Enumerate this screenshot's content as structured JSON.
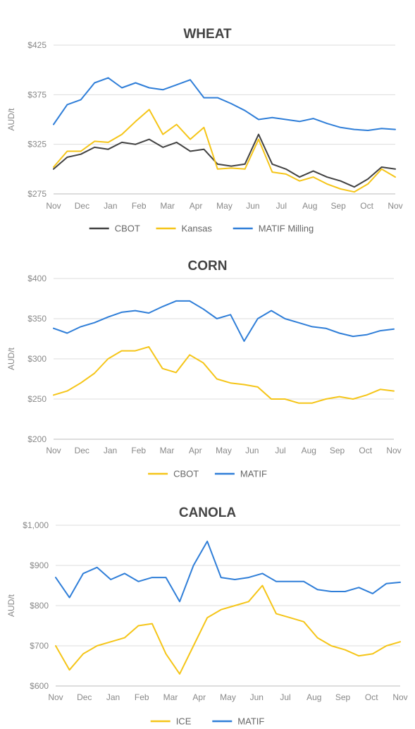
{
  "chart_data": [
    {
      "type": "line",
      "title": "WHEAT",
      "ylabel": "AUD/t",
      "ylim": [
        275,
        425
      ],
      "yticks": [
        275,
        325,
        375,
        425
      ],
      "yticklabels": [
        "$275",
        "$325",
        "$375",
        "$425"
      ],
      "xlabels": [
        "Nov",
        "Dec",
        "Jan",
        "Feb",
        "Mar",
        "Apr",
        "May",
        "Jun",
        "Jul",
        "Aug",
        "Sep",
        "Oct",
        "Nov"
      ],
      "x": [
        "Nov",
        "Nov",
        "Dec",
        "Dec",
        "Jan",
        "Jan",
        "Feb",
        "Feb",
        "Mar",
        "Mar",
        "Apr",
        "Apr",
        "May",
        "May",
        "Jun",
        "Jun",
        "Jul",
        "Jul",
        "Aug",
        "Aug",
        "Sep",
        "Sep",
        "Oct",
        "Oct",
        "Nov",
        "Nov"
      ],
      "legend_position": "bottom",
      "series": [
        {
          "name": "CBOT",
          "color": "#424242",
          "values": [
            300,
            312,
            315,
            322,
            320,
            327,
            325,
            330,
            322,
            327,
            318,
            320,
            305,
            303,
            305,
            335,
            305,
            300,
            292,
            298,
            292,
            288,
            282,
            290,
            302,
            300
          ]
        },
        {
          "name": "Kansas",
          "color": "#F5C518",
          "values": [
            302,
            318,
            318,
            328,
            327,
            335,
            348,
            360,
            335,
            345,
            330,
            342,
            300,
            301,
            300,
            330,
            297,
            295,
            288,
            292,
            285,
            280,
            277,
            285,
            300,
            292
          ]
        },
        {
          "name": "MATIF Milling",
          "color": "#2F7ED8",
          "values": [
            345,
            365,
            370,
            387,
            392,
            382,
            387,
            382,
            380,
            385,
            390,
            372,
            372,
            366,
            359,
            350,
            352,
            350,
            348,
            351,
            346,
            342,
            340,
            339,
            341,
            340
          ]
        }
      ]
    },
    {
      "type": "line",
      "title": "CORN",
      "ylabel": "AUD/t",
      "ylim": [
        200,
        400
      ],
      "yticks": [
        200,
        250,
        300,
        350,
        400
      ],
      "yticklabels": [
        "$200",
        "$250",
        "$300",
        "$350",
        "$400"
      ],
      "xlabels": [
        "Nov",
        "Dec",
        "Jan",
        "Feb",
        "Mar",
        "Apr",
        "May",
        "Jun",
        "Jul",
        "Aug",
        "Sep",
        "Oct",
        "Nov"
      ],
      "x": [
        "Nov",
        "Nov",
        "Dec",
        "Dec",
        "Jan",
        "Jan",
        "Feb",
        "Feb",
        "Mar",
        "Mar",
        "Apr",
        "Apr",
        "May",
        "May",
        "Jun",
        "Jun",
        "Jul",
        "Jul",
        "Aug",
        "Aug",
        "Sep",
        "Sep",
        "Oct",
        "Oct",
        "Nov",
        "Nov"
      ],
      "legend_position": "bottom",
      "series": [
        {
          "name": "CBOT",
          "color": "#F5C518",
          "values": [
            255,
            260,
            270,
            282,
            300,
            310,
            310,
            315,
            288,
            283,
            305,
            295,
            275,
            270,
            268,
            265,
            250,
            250,
            245,
            245,
            250,
            253,
            250,
            255,
            262,
            260
          ]
        },
        {
          "name": "MATIF",
          "color": "#2F7ED8",
          "values": [
            338,
            332,
            340,
            345,
            352,
            358,
            360,
            357,
            365,
            372,
            372,
            362,
            350,
            355,
            322,
            350,
            360,
            350,
            345,
            340,
            338,
            332,
            328,
            330,
            335,
            337
          ]
        }
      ]
    },
    {
      "type": "line",
      "title": "CANOLA",
      "ylabel": "AUD/t",
      "ylim": [
        600,
        1000
      ],
      "yticks": [
        600,
        700,
        800,
        900,
        1000
      ],
      "yticklabels": [
        "$600",
        "$700",
        "$800",
        "$900",
        "$1,000"
      ],
      "xlabels": [
        "Nov",
        "Dec",
        "Jan",
        "Feb",
        "Mar",
        "Apr",
        "May",
        "Jun",
        "Jul",
        "Aug",
        "Sep",
        "Oct",
        "Nov"
      ],
      "x": [
        "Nov",
        "Nov",
        "Dec",
        "Dec",
        "Jan",
        "Jan",
        "Feb",
        "Feb",
        "Mar",
        "Mar",
        "Apr",
        "Apr",
        "May",
        "May",
        "Jun",
        "Jun",
        "Jul",
        "Jul",
        "Aug",
        "Aug",
        "Sep",
        "Sep",
        "Oct",
        "Oct",
        "Nov",
        "Nov"
      ],
      "legend_position": "bottom",
      "series": [
        {
          "name": "ICE",
          "color": "#F5C518",
          "values": [
            700,
            640,
            680,
            700,
            710,
            720,
            750,
            755,
            680,
            630,
            700,
            770,
            790,
            800,
            810,
            850,
            780,
            770,
            760,
            720,
            700,
            690,
            675,
            680,
            700,
            710
          ]
        },
        {
          "name": "MATIF",
          "color": "#2F7ED8",
          "values": [
            870,
            820,
            880,
            895,
            865,
            880,
            860,
            870,
            870,
            810,
            900,
            960,
            870,
            865,
            870,
            880,
            860,
            860,
            860,
            840,
            835,
            835,
            845,
            830,
            855,
            858
          ]
        }
      ]
    }
  ]
}
